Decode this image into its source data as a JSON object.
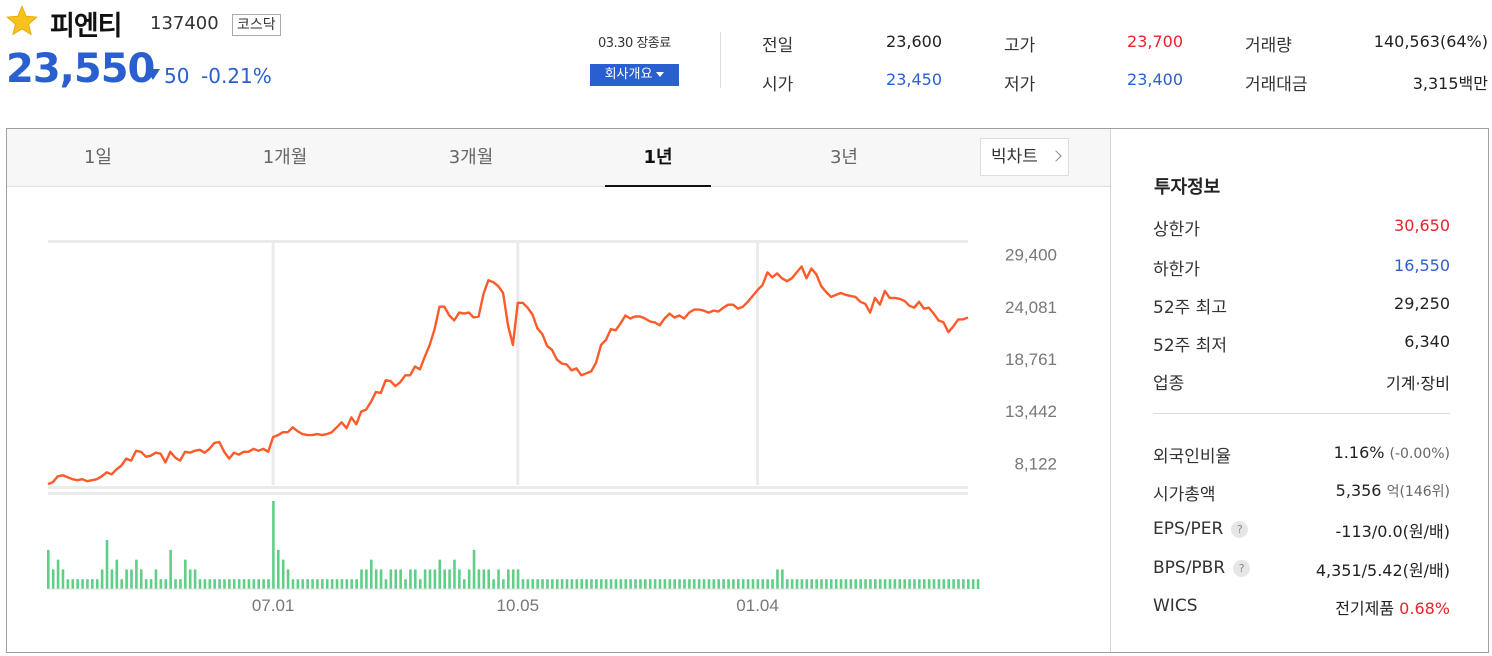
{
  "stock": {
    "name": "피엔티",
    "code": "137400",
    "market": "코스닥",
    "price": "23,550",
    "change": "50",
    "change_pct": "-0.21%",
    "date": "03.30 장종료",
    "overview_label": "회사개요",
    "colors": {
      "up": "#e8232a",
      "down": "#2a5fd0",
      "line": "#ff5a2a",
      "volume": "#5fcf87"
    }
  },
  "quote": {
    "prev_close_label": "전일",
    "prev_close": "23,600",
    "open_label": "시가",
    "open": "23,450",
    "high_label": "고가",
    "high": "23,700",
    "low_label": "저가",
    "low": "23,400",
    "volume_label": "거래량",
    "volume": "140,563(64%)",
    "amount_label": "거래대금",
    "amount_num": "3,315",
    "amount_unit": "백만"
  },
  "tabs": [
    "1일",
    "1개월",
    "3개월",
    "1년",
    "3년"
  ],
  "active_tab": "1년",
  "bigchart_label": "빅차트",
  "invest": {
    "title": "투자정보",
    "upper_label": "상한가",
    "upper": "30,650",
    "lower_label": "하한가",
    "lower": "16,550",
    "high52_label": "52주 최고",
    "high52": "29,250",
    "low52_label": "52주 최저",
    "low52": "6,340",
    "sector_label": "업종",
    "sector": "기계·장비",
    "foreign_label": "외국인비율",
    "foreign": "1.16%",
    "foreign_sub": "(-0.00%)",
    "mcap_label": "시가총액",
    "mcap": "5,356",
    "mcap_unit": "억",
    "mcap_sub": "(146위)",
    "eps_label": "EPS/PER",
    "eps": "-113/0.0",
    "eps_unit": "(원/배)",
    "bps_label": "BPS/PBR",
    "bps": "4,351/5.42",
    "bps_unit": "(원/배)",
    "wics_label": "WICS",
    "wics": "전기제품",
    "wics_pct": "0.68%"
  },
  "chart_data": {
    "type": "line",
    "title": "",
    "xlabel": "",
    "ylabel": "",
    "yticks": [
      29400,
      24081,
      18761,
      13442,
      8122
    ],
    "ytick_labels": [
      "29,400",
      "24,081",
      "18,761",
      "13,442",
      "8,122"
    ],
    "ylim": [
      5500,
      30700
    ],
    "xtick_labels": [
      "07.01",
      "10.05",
      "01.04"
    ],
    "xtick_index": [
      46,
      96,
      145
    ],
    "grid": true,
    "series": [
      {
        "values": [
          6000,
          6200,
          6800,
          6900,
          6700,
          6500,
          6400,
          6500,
          6300,
          6400,
          6500,
          6800,
          7200,
          7000,
          7500,
          7900,
          8600,
          8400,
          9400,
          9300,
          8800,
          8900,
          9200,
          9100,
          8200,
          9300,
          8700,
          8400,
          9300,
          9200,
          9400,
          9500,
          9200,
          9600,
          10200,
          10300,
          9300,
          8600,
          9200,
          9000,
          9300,
          9300,
          9600,
          9400,
          9600,
          9300,
          10800,
          11000,
          11300,
          11300,
          11800,
          11400,
          11100,
          11000,
          11000,
          11100,
          11000,
          11100,
          11300,
          11800,
          12300,
          11700,
          12800,
          12100,
          13400,
          13600,
          14400,
          15400,
          15300,
          16600,
          16500,
          16000,
          16400,
          17100,
          17100,
          18000,
          17700,
          19000,
          20200,
          21800,
          24100,
          24100,
          23200,
          22700,
          23500,
          23400,
          23500,
          23000,
          23100,
          25400,
          26800,
          26600,
          26200,
          25500,
          22200,
          20200,
          24500,
          24500,
          24000,
          23300,
          21900,
          21300,
          20100,
          19700,
          18700,
          18300,
          18200,
          17600,
          17800,
          17100,
          17300,
          17500,
          18400,
          20200,
          20700,
          21800,
          21700,
          22400,
          23200,
          22900,
          23100,
          23100,
          22900,
          22600,
          22500,
          22200,
          22900,
          23400,
          23000,
          23200,
          22900,
          23500,
          23800,
          23800,
          23700,
          23500,
          23700,
          23600,
          24000,
          24300,
          24300,
          23900,
          24100,
          24600,
          25200,
          25800,
          26300,
          27600,
          27100,
          27500,
          27000,
          26700,
          27000,
          27600,
          28200,
          27000,
          28000,
          27400,
          26200,
          25600,
          25100,
          25300,
          25500,
          25300,
          25200,
          25100,
          24600,
          24400,
          23500,
          25000,
          24300,
          25700,
          25000,
          25000,
          24900,
          24700,
          24200,
          24000,
          24600,
          23900,
          24000,
          23400,
          22700,
          22500,
          21500,
          22100,
          22800,
          22800,
          23000
        ]
      }
    ],
    "volume": [
      4,
      2,
      3,
      2,
      1,
      1,
      1,
      1,
      1,
      1,
      1,
      2,
      5,
      2,
      3,
      1,
      2,
      2,
      3,
      2,
      1,
      1,
      2,
      1,
      1,
      4,
      1,
      1,
      3,
      2,
      2,
      1,
      1,
      1,
      1,
      1,
      1,
      1,
      1,
      1,
      1,
      1,
      1,
      1,
      1,
      1,
      9,
      4,
      3,
      2,
      1,
      1,
      1,
      1,
      1,
      1,
      1,
      1,
      1,
      1,
      1,
      1,
      1,
      1,
      2,
      2,
      3,
      2,
      2,
      1,
      2,
      2,
      2,
      1,
      2,
      2,
      1,
      2,
      2,
      2,
      3,
      2,
      2,
      3,
      2,
      1,
      2,
      4,
      2,
      2,
      2,
      1,
      2,
      1,
      2,
      2,
      2,
      1,
      1,
      1,
      1,
      1,
      1,
      1,
      1,
      1,
      1,
      1,
      1,
      1,
      1,
      1,
      1,
      1,
      1,
      1,
      1,
      1,
      1,
      1,
      1,
      1,
      1,
      1,
      1,
      1,
      1,
      1,
      1,
      1,
      1,
      1,
      1,
      1,
      1,
      1,
      1,
      1,
      1,
      1,
      1,
      1,
      1,
      1,
      1,
      1,
      1,
      1,
      1,
      2,
      2,
      1,
      1,
      1,
      1,
      1,
      1,
      1,
      1,
      1,
      1,
      1,
      1,
      1,
      1,
      1,
      1,
      1,
      1,
      1,
      1,
      1,
      1,
      1,
      1,
      1,
      1,
      1,
      1,
      1,
      1,
      1,
      1,
      1,
      1,
      1,
      1,
      1,
      1,
      1,
      1
    ]
  }
}
